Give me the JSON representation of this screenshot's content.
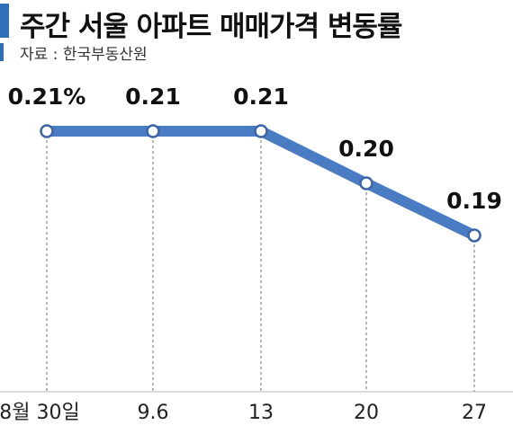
{
  "header": {
    "title": "주간 서울 아파트 매매가격 변동률",
    "source": "자료 : 한국부동산원"
  },
  "chart_data": {
    "type": "line",
    "title": "주간 서울 아파트 매매가격 변동률",
    "x": [
      "8월 30일",
      "9.6",
      "13",
      "20",
      "27"
    ],
    "series": [
      {
        "values": [
          0.21,
          0.21,
          0.21,
          0.2,
          0.19
        ]
      }
    ],
    "data_labels": [
      "0.21%",
      "0.21",
      "0.21",
      "0.20",
      "0.19"
    ],
    "ylim": [
      0.19,
      0.21
    ],
    "grid": "vertical-dashed",
    "colors": {
      "line": "#4a7cc4",
      "marker_fill": "#ffffff",
      "marker_stroke": "#3a66a8",
      "grid": "#888888"
    }
  }
}
